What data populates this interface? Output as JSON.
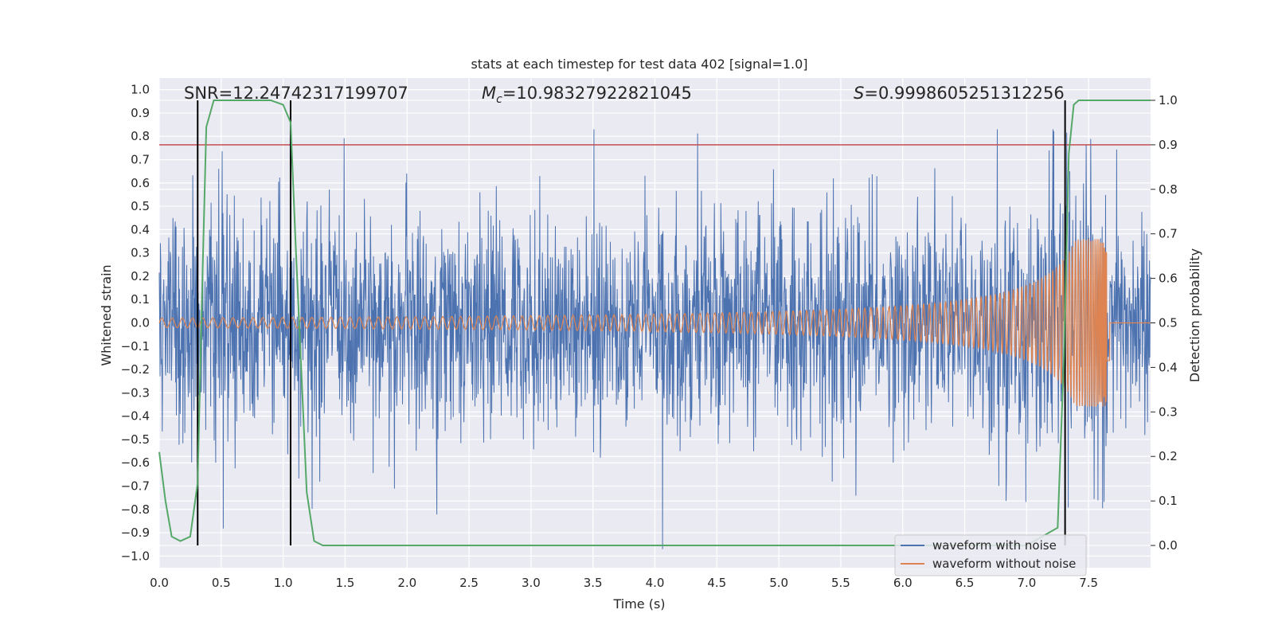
{
  "chart_data": {
    "type": "line",
    "title": "stats at each timestep for test data 402 [signal=1.0]",
    "xlabel": "Time (s)",
    "ylabel": "Whitened strain",
    "y2label": "Detection probability",
    "xlim": [
      0.0,
      8.0
    ],
    "ylim": [
      -1.05,
      1.05
    ],
    "y2lim": [
      -0.05,
      1.05
    ],
    "xticks": [
      "0.0",
      "0.5",
      "1.0",
      "1.5",
      "2.0",
      "2.5",
      "3.0",
      "3.5",
      "4.0",
      "4.5",
      "5.0",
      "5.5",
      "6.0",
      "6.5",
      "7.0",
      "7.5"
    ],
    "yticks": [
      "1.0",
      "0.9",
      "0.8",
      "0.7",
      "0.6",
      "0.5",
      "0.4",
      "0.3",
      "0.2",
      "0.1",
      "0.0",
      "−0.1",
      "−0.2",
      "−0.3",
      "−0.4",
      "−0.5",
      "−0.6",
      "−0.7",
      "−0.8",
      "−0.9",
      "−1.0"
    ],
    "y2ticks": [
      "1.0",
      "0.9",
      "0.8",
      "0.7",
      "0.6",
      "0.5",
      "0.4",
      "0.3",
      "0.2",
      "0.1",
      "0.0"
    ],
    "grid": true,
    "threshold": {
      "axis": "y2",
      "value": 0.9,
      "color": "#c44e52"
    },
    "vertical_markers": [
      0.31,
      1.06,
      7.31
    ],
    "annotations": {
      "snr": "SNR=12.24742317199707",
      "mc_symbol": "M",
      "mc_sub": "c",
      "mc_value": "=10.98327922821045",
      "s_symbol": "S",
      "s_value": "=0.9998605251312256"
    },
    "series": [
      {
        "name": "waveform with noise",
        "color": "#4c72b0",
        "kind": "noise",
        "amplitude_typical": 0.45,
        "amplitude_max": 0.83
      },
      {
        "name": "waveform without noise",
        "color": "#dd8452",
        "kind": "chirp",
        "amplitude_start": 0.02,
        "amplitude_peak": 0.36,
        "merger_time": 7.65,
        "x_end": 8.0
      },
      {
        "name": "detection probability",
        "color": "#55a868",
        "axis": "y2",
        "x": [
          0.0,
          0.05,
          0.1,
          0.17,
          0.25,
          0.31,
          0.35,
          0.38,
          0.44,
          0.5,
          0.7,
          0.9,
          1.0,
          1.06,
          1.1,
          1.15,
          1.19,
          1.25,
          1.32,
          7.0,
          7.25,
          7.3,
          7.34,
          7.38,
          7.42,
          7.46,
          7.5,
          7.6,
          8.0
        ],
        "y": [
          0.21,
          0.1,
          0.02,
          0.01,
          0.02,
          0.14,
          0.62,
          0.94,
          1.0,
          1.0,
          1.0,
          1.0,
          0.99,
          0.95,
          0.68,
          0.37,
          0.12,
          0.01,
          0.0,
          0.0,
          0.04,
          0.42,
          0.88,
          0.99,
          1.0,
          1.0,
          1.0,
          1.0,
          1.0
        ]
      }
    ],
    "legend": {
      "position": "lower right",
      "entries": [
        "waveform with noise",
        "waveform without noise"
      ]
    }
  }
}
